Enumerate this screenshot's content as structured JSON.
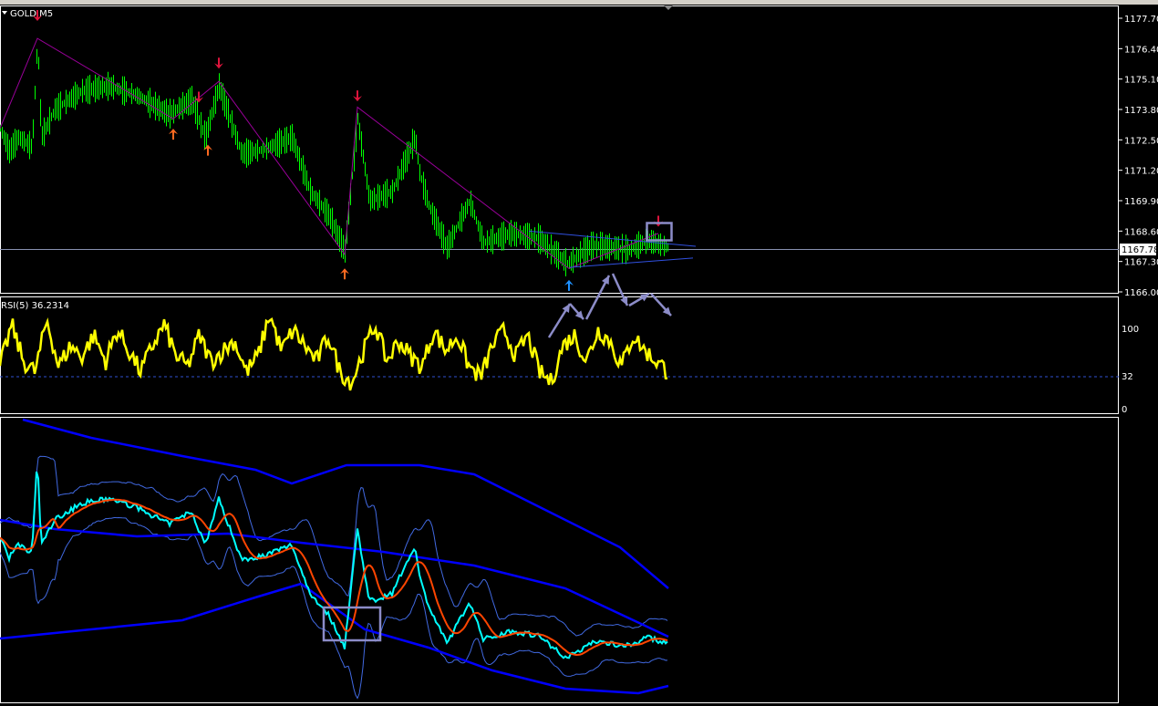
{
  "window": {
    "symbol_title": "GOLD,M5"
  },
  "colors": {
    "bull_bars": "#00ff00",
    "rsi_line": "#ffff00",
    "zigzag": "#990099",
    "sell_arrow": "#dc143c",
    "buy_arrow": "#1e90ff",
    "price_line_bottom": "#00ffff",
    "ma_line": "#ff4500",
    "bands_outer": "#0000ff",
    "bands_inner": "#4169e1",
    "annotation": "#8c8cc8"
  },
  "current_price_label": "1167.78",
  "rsi": {
    "label": "RSI(5) 36.2314",
    "levels": [
      "100",
      "32",
      "0"
    ]
  },
  "chart_data": [
    {
      "type": "line",
      "title": "GOLD,M5",
      "y_ticks": [
        "1177.70",
        "1176.40",
        "1175.10",
        "1173.80",
        "1172.50",
        "1171.20",
        "1169.90",
        "1168.60",
        "1167.30",
        "1166.00"
      ],
      "ylim": [
        1166.0,
        1177.7
      ],
      "current_price": 1167.78,
      "series": [
        {
          "x": [
            0,
            10,
            20,
            35,
            41,
            45,
            60,
            90,
            120,
            150,
            185,
            210,
            225,
            240,
            265,
            290,
            320,
            340,
            360,
            378,
            392,
            405,
            430,
            455,
            460,
            470,
            490,
            515,
            530,
            560,
            590,
            622,
            650,
            690,
            710,
            733
          ],
          "values": [
            1173.0,
            1172.0,
            1172.6,
            1172.2,
            1176.84,
            1172.6,
            1173.8,
            1174.6,
            1174.8,
            1174.4,
            1173.6,
            1174.2,
            1172.6,
            1174.8,
            1171.9,
            1172.1,
            1172.6,
            1170.3,
            1169.3,
            1167.75,
            1173.4,
            1169.9,
            1170.3,
            1172.6,
            1171.1,
            1169.7,
            1167.9,
            1169.9,
            1168.1,
            1168.5,
            1168.3,
            1167.2,
            1168.0,
            1167.8,
            1168.2,
            1167.9
          ]
        }
      ],
      "markers": [
        {
          "type": "sell",
          "x": 41
        },
        {
          "type": "buy",
          "x": 190
        },
        {
          "type": "sell",
          "x": 218
        },
        {
          "type": "buy",
          "x": 228
        },
        {
          "type": "sell",
          "x": 240
        },
        {
          "type": "sell",
          "x": 392
        },
        {
          "type": "buy",
          "x": 378
        },
        {
          "type": "buy",
          "x": 624
        },
        {
          "type": "sell",
          "x": 722
        }
      ]
    },
    {
      "type": "line",
      "title": "RSI(5) 36.2314",
      "ylim": [
        0,
        100
      ],
      "level": 32,
      "series": [
        {
          "values": [
            40,
            80,
            45,
            35,
            85,
            40,
            60,
            50,
            70,
            45,
            75,
            55,
            35,
            60,
            80,
            50,
            40,
            70,
            45,
            55,
            65,
            35,
            50,
            90,
            55,
            75,
            60,
            45,
            70,
            35,
            25,
            55,
            80,
            45,
            65,
            50,
            40,
            75,
            55,
            70,
            40,
            30,
            60,
            75,
            50,
            70,
            35,
            25,
            60,
            70,
            45,
            75,
            65,
            40,
            70,
            55,
            45,
            35
          ]
        }
      ]
    },
    {
      "type": "line",
      "title": "",
      "series_description_colors": [
        "price",
        "moving-average",
        "inner-bands",
        "outer-bands"
      ]
    }
  ]
}
